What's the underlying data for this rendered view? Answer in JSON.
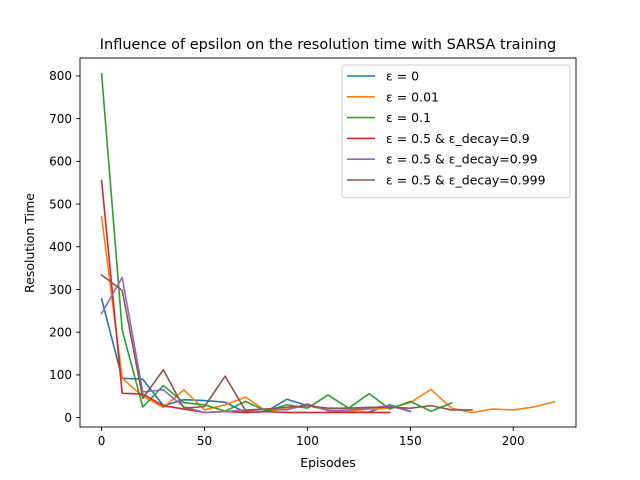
{
  "chart_data": {
    "type": "line",
    "title": "Influence of epsilon on the resolution time with SARSA training",
    "xlabel": "Episodes",
    "ylabel": "Resolution Time",
    "xlim": [
      -10.5,
      230.5
    ],
    "ylim": [
      -22,
      842
    ],
    "xticks": [
      0,
      50,
      100,
      150,
      200
    ],
    "yticks": [
      0,
      100,
      200,
      300,
      400,
      500,
      600,
      700,
      800
    ],
    "grid": false,
    "legend_position": "upper right",
    "series": [
      {
        "name": "ε = 0",
        "color": "#1f77b4",
        "x": [
          0,
          10,
          20,
          30,
          40,
          50,
          60,
          70,
          80,
          90,
          100,
          110,
          120,
          130,
          140,
          150
        ],
        "y": [
          278,
          92,
          90,
          28,
          42,
          40,
          36,
          12,
          14,
          43,
          28,
          18,
          12,
          13,
          30,
          15
        ]
      },
      {
        "name": "ε = 0.01",
        "color": "#ff7f0e",
        "x": [
          0,
          10,
          20,
          30,
          40,
          50,
          60,
          70,
          80,
          90,
          100,
          110,
          120,
          130,
          140,
          150,
          160,
          170,
          180,
          190,
          200,
          210,
          220
        ],
        "y": [
          470,
          92,
          50,
          24,
          65,
          18,
          30,
          48,
          15,
          20,
          28,
          18,
          15,
          20,
          22,
          35,
          66,
          22,
          12,
          20,
          18,
          25,
          37
        ]
      },
      {
        "name": "ε = 0.1",
        "color": "#2ca02c",
        "x": [
          0,
          10,
          20,
          30,
          40,
          50,
          60,
          70,
          80,
          90,
          100,
          110,
          120,
          130,
          140,
          150,
          160,
          170
        ],
        "y": [
          805,
          205,
          25,
          75,
          35,
          30,
          15,
          38,
          15,
          30,
          22,
          53,
          22,
          56,
          20,
          38,
          15,
          34
        ]
      },
      {
        "name": "ε = 0.5 & ε_decay=0.9",
        "color": "#d62728",
        "x": [
          0,
          10,
          20,
          30,
          40,
          50,
          60,
          70,
          80,
          90,
          100,
          110,
          120,
          130,
          140
        ],
        "y": [
          555,
          57,
          55,
          28,
          20,
          12,
          14,
          12,
          14,
          12,
          12,
          12,
          12,
          12,
          12
        ]
      },
      {
        "name": "ε = 0.5 & ε_decay=0.99",
        "color": "#9467bd",
        "x": [
          0,
          10,
          20,
          30,
          40,
          50,
          60,
          70,
          80,
          90,
          100,
          110,
          120,
          130,
          140,
          150
        ],
        "y": [
          244,
          328,
          60,
          65,
          25,
          12,
          14,
          18,
          20,
          18,
          32,
          16,
          18,
          22,
          28,
          14
        ]
      },
      {
        "name": "ε = 0.5 & ε_decay=0.999",
        "color": "#8c564b",
        "x": [
          0,
          10,
          20,
          30,
          40,
          50,
          60,
          70,
          80,
          90,
          100,
          110,
          120,
          130,
          140,
          150,
          160,
          170,
          180
        ],
        "y": [
          334,
          298,
          45,
          112,
          22,
          26,
          97,
          16,
          20,
          24,
          28,
          22,
          22,
          24,
          24,
          22,
          28,
          18,
          18
        ]
      }
    ]
  }
}
